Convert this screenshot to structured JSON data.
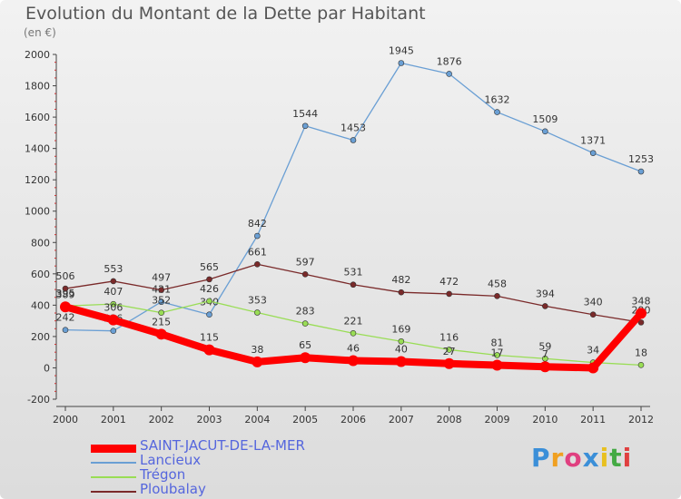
{
  "title": "Evolution du Montant de la Dette par Habitant",
  "subtitle": "(en €)",
  "logo_text": "Proxiti",
  "chart_data": {
    "type": "line",
    "x": [
      "2000",
      "2001",
      "2002",
      "2003",
      "2004",
      "2005",
      "2006",
      "2007",
      "2008",
      "2009",
      "2010",
      "2011",
      "2012"
    ],
    "ylim": [
      -200,
      2000
    ],
    "y_ticks": [
      -200,
      0,
      200,
      400,
      600,
      800,
      1000,
      1200,
      1400,
      1600,
      1800,
      2000
    ],
    "grid": false,
    "legend_position": "bottom-left",
    "series": [
      {
        "name": "Lancieux",
        "color": "#6a9fd4",
        "values": [
          242,
          236,
          421,
          340,
          842,
          1544,
          1453,
          1945,
          1876,
          1632,
          1509,
          1371,
          1253
        ],
        "labels": [
          "242",
          "236",
          "421",
          "340",
          "842",
          "1544",
          "1453",
          "1945",
          "1876",
          "1632",
          "1509",
          "1371",
          "1253"
        ]
      },
      {
        "name": "Trégon",
        "color": "#99dd55",
        "values": [
          395,
          407,
          352,
          426,
          353,
          283,
          221,
          169,
          116,
          81,
          59,
          34,
          18
        ],
        "labels": [
          "395",
          "407",
          "352",
          "426",
          "353",
          "283",
          "221",
          "169",
          "116",
          "81",
          "59",
          "34",
          "18"
        ]
      },
      {
        "name": "Ploubalay",
        "color": "#7a2a2a",
        "values": [
          506,
          553,
          497,
          565,
          661,
          597,
          531,
          482,
          472,
          458,
          394,
          340,
          290
        ],
        "labels": [
          "506",
          "553",
          "497",
          "565",
          "661",
          "597",
          "531",
          "482",
          "472",
          "458",
          "394",
          "340",
          "290"
        ]
      },
      {
        "name": "SAINT-JACUT-DE-LA-MER",
        "color": "#ff0000",
        "values": [
          389,
          306,
          215,
          115,
          38,
          65,
          46,
          40,
          27,
          17,
          7,
          0,
          348
        ],
        "labels": [
          "389",
          "306",
          "215",
          "115",
          "38",
          "65",
          "46",
          "40",
          "27",
          "17",
          "7",
          "",
          "348"
        ]
      }
    ]
  },
  "legend": [
    {
      "label": "SAINT-JACUT-DE-LA-MER",
      "color": "#ff0000"
    },
    {
      "label": "Lancieux",
      "color": "#6a9fd4"
    },
    {
      "label": "Trégon",
      "color": "#99dd55"
    },
    {
      "label": "Ploubalay",
      "color": "#7a2a2a"
    }
  ]
}
